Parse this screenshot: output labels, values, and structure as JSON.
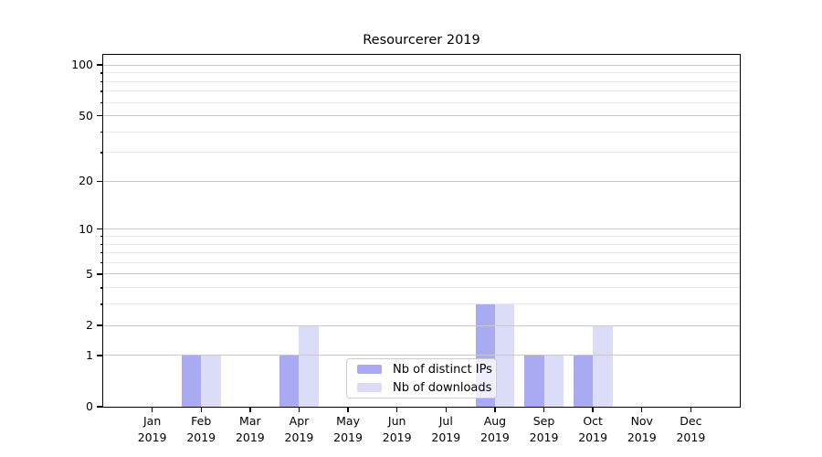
{
  "title": "Resourcerer 2019",
  "legend": {
    "items": [
      {
        "label": "Nb of distinct IPs",
        "color": "#a9aaf2"
      },
      {
        "label": "Nb of downloads",
        "color": "#dbdcf8"
      }
    ]
  },
  "axes": {
    "y_major_ticks": [
      0,
      1,
      2,
      5,
      10,
      20,
      50,
      100
    ],
    "y_minor_ticks": [
      3,
      4,
      6,
      7,
      8,
      9,
      30,
      40,
      60,
      70,
      80,
      90
    ]
  },
  "chart_data": {
    "type": "bar",
    "title": "Resourcerer 2019",
    "categories": [
      "Jan 2019",
      "Feb 2019",
      "Mar 2019",
      "Apr 2019",
      "May 2019",
      "Jun 2019",
      "Jul 2019",
      "Aug 2019",
      "Sep 2019",
      "Oct 2019",
      "Nov 2019",
      "Dec 2019"
    ],
    "series": [
      {
        "name": "Nb of distinct IPs",
        "color": "#a9aaf2",
        "values": [
          0,
          1,
          0,
          1,
          0,
          0,
          0,
          3,
          1,
          1,
          0,
          0
        ]
      },
      {
        "name": "Nb of downloads",
        "color": "#dbdcf8",
        "values": [
          0,
          1,
          0,
          2,
          0,
          0,
          0,
          3,
          1,
          2,
          0,
          0
        ]
      }
    ],
    "xlabel": "",
    "ylabel": "",
    "yscale": "log(1+y)",
    "ylim": [
      0,
      115
    ],
    "y_ticks": [
      0,
      1,
      2,
      5,
      10,
      20,
      50,
      100
    ],
    "grid": true,
    "grid_color_major": "#c9c9c9",
    "grid_color_minor": "#e9e9e9",
    "legend_position": "inside lower-center"
  }
}
